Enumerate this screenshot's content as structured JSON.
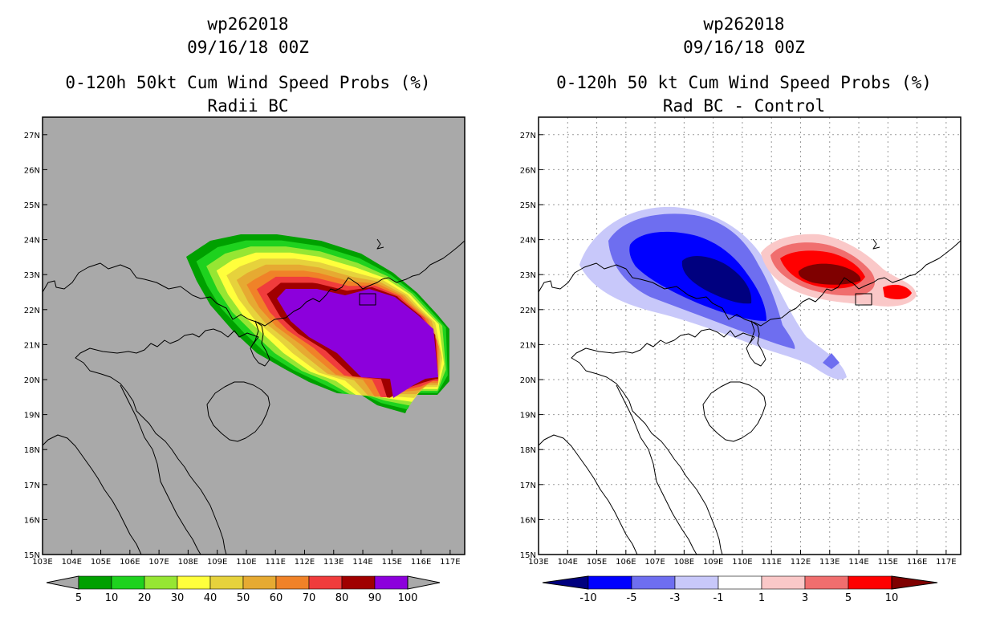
{
  "left": {
    "title_line1": "wp262018",
    "title_line2": "09/16/18 00Z",
    "title_line3": "0-120h 50kt Cum Wind Speed Probs (%)",
    "title_line4": "Radii BC",
    "background": "#a9a9a9",
    "colorbar_labels": [
      "5",
      "10",
      "20",
      "30",
      "40",
      "50",
      "60",
      "70",
      "80",
      "90",
      "100"
    ],
    "colorbar_colors": [
      "#00a000",
      "#1ed21e",
      "#96e633",
      "#ffff3c",
      "#e6d23c",
      "#e6aa32",
      "#f08228",
      "#f03c3c",
      "#a00000",
      "#8c00dc"
    ],
    "contours": [
      {
        "level": 5,
        "color": "#00a000"
      },
      {
        "level": 10,
        "color": "#1ed21e"
      },
      {
        "level": 20,
        "color": "#96e633"
      },
      {
        "level": 30,
        "color": "#ffff3c"
      },
      {
        "level": 40,
        "color": "#e6d23c"
      },
      {
        "level": 50,
        "color": "#e6aa32"
      },
      {
        "level": 60,
        "color": "#f08228"
      },
      {
        "level": 70,
        "color": "#f03c3c"
      },
      {
        "level": 80,
        "color": "#a00000"
      },
      {
        "level": 90,
        "color": "#8c00dc"
      }
    ]
  },
  "right": {
    "title_line1": "wp262018",
    "title_line2": "09/16/18 00Z",
    "title_line3": "0-120h 50 kt Cum Wind Speed Probs (%)",
    "title_line4": "Rad BC - Control",
    "background": "#ffffff",
    "colorbar_labels": [
      "-10",
      "-5",
      "-3",
      "-1",
      "1",
      "3",
      "5",
      "10"
    ],
    "colorbar_colors": [
      "#00007f",
      "#0000ff",
      "#6e6ef0",
      "#c8c8fa",
      "#ffffff",
      "#fac8c8",
      "#f06e6e",
      "#ff0000",
      "#7f0000"
    ]
  },
  "axes": {
    "lon_labels": [
      "103E",
      "104E",
      "105E",
      "106E",
      "107E",
      "108E",
      "109E",
      "110E",
      "111E",
      "112E",
      "113E",
      "114E",
      "115E",
      "116E",
      "117E"
    ],
    "lat_labels": [
      "15N",
      "16N",
      "17N",
      "18N",
      "19N",
      "20N",
      "21N",
      "22N",
      "23N",
      "24N",
      "25N",
      "26N",
      "27N"
    ],
    "lon_range": [
      103,
      117.5
    ],
    "lat_range": [
      15,
      27.5
    ]
  }
}
